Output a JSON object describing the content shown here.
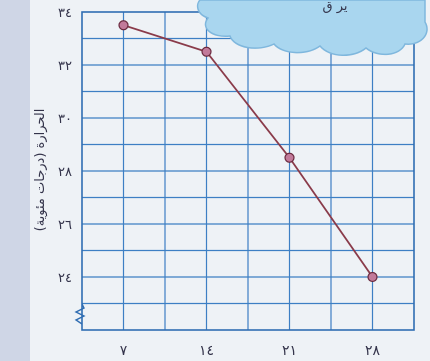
{
  "colors": {
    "background": "#eef2f6",
    "left_strip": "#cfd6e6",
    "grid": "#3d7fc4",
    "axis": "#2f6db2",
    "series_line": "#8a3b4a",
    "marker_fill": "#c27a9a",
    "marker_stroke": "#6a2a3e",
    "text": "#33334a",
    "cloud": "#a9d6ef",
    "cloud_stroke": "#7fb7dd"
  },
  "cloud_text": "ير ق",
  "chart_data": {
    "type": "line",
    "x": [
      7,
      14,
      21,
      28
    ],
    "x_tick_labels": [
      "٧",
      "١٤",
      "٢١",
      "٢٨"
    ],
    "y": [
      33.5,
      32.5,
      28.5,
      24.0
    ],
    "y_ticks": [
      24,
      26,
      28,
      30,
      32,
      34
    ],
    "y_tick_labels": [
      "٢٤",
      "٢٦",
      "٢٨",
      "٣٠",
      "٣٢",
      "٣٤"
    ],
    "xlim": [
      3.5,
      31.5
    ],
    "ylim": [
      22.0,
      34.0
    ],
    "ylabel": "الحرارة (درجات مئوية)",
    "xlabel": "",
    "grid": true,
    "axis_break": true
  }
}
